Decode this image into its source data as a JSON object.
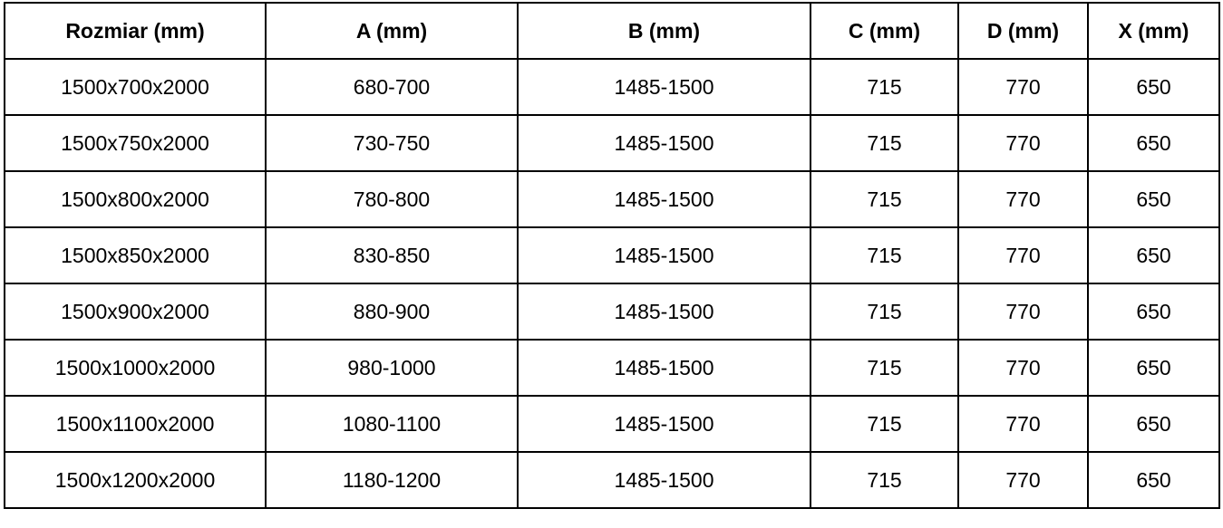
{
  "table": {
    "headers": [
      "Rozmiar (mm)",
      "A (mm)",
      "B (mm)",
      "C (mm)",
      "D (mm)",
      "X (mm)"
    ],
    "rows": [
      [
        "1500x700x2000",
        "680-700",
        "1485-1500",
        "715",
        "770",
        "650"
      ],
      [
        "1500x750x2000",
        "730-750",
        "1485-1500",
        "715",
        "770",
        "650"
      ],
      [
        "1500x800x2000",
        "780-800",
        "1485-1500",
        "715",
        "770",
        "650"
      ],
      [
        "1500x850x2000",
        "830-850",
        "1485-1500",
        "715",
        "770",
        "650"
      ],
      [
        "1500x900x2000",
        "880-900",
        "1485-1500",
        "715",
        "770",
        "650"
      ],
      [
        "1500x1000x2000",
        "980-1000",
        "1485-1500",
        "715",
        "770",
        "650"
      ],
      [
        "1500x1100x2000",
        "1080-1100",
        "1485-1500",
        "715",
        "770",
        "650"
      ],
      [
        "1500x1200x2000",
        "1180-1200",
        "1485-1500",
        "715",
        "770",
        "650"
      ]
    ]
  }
}
